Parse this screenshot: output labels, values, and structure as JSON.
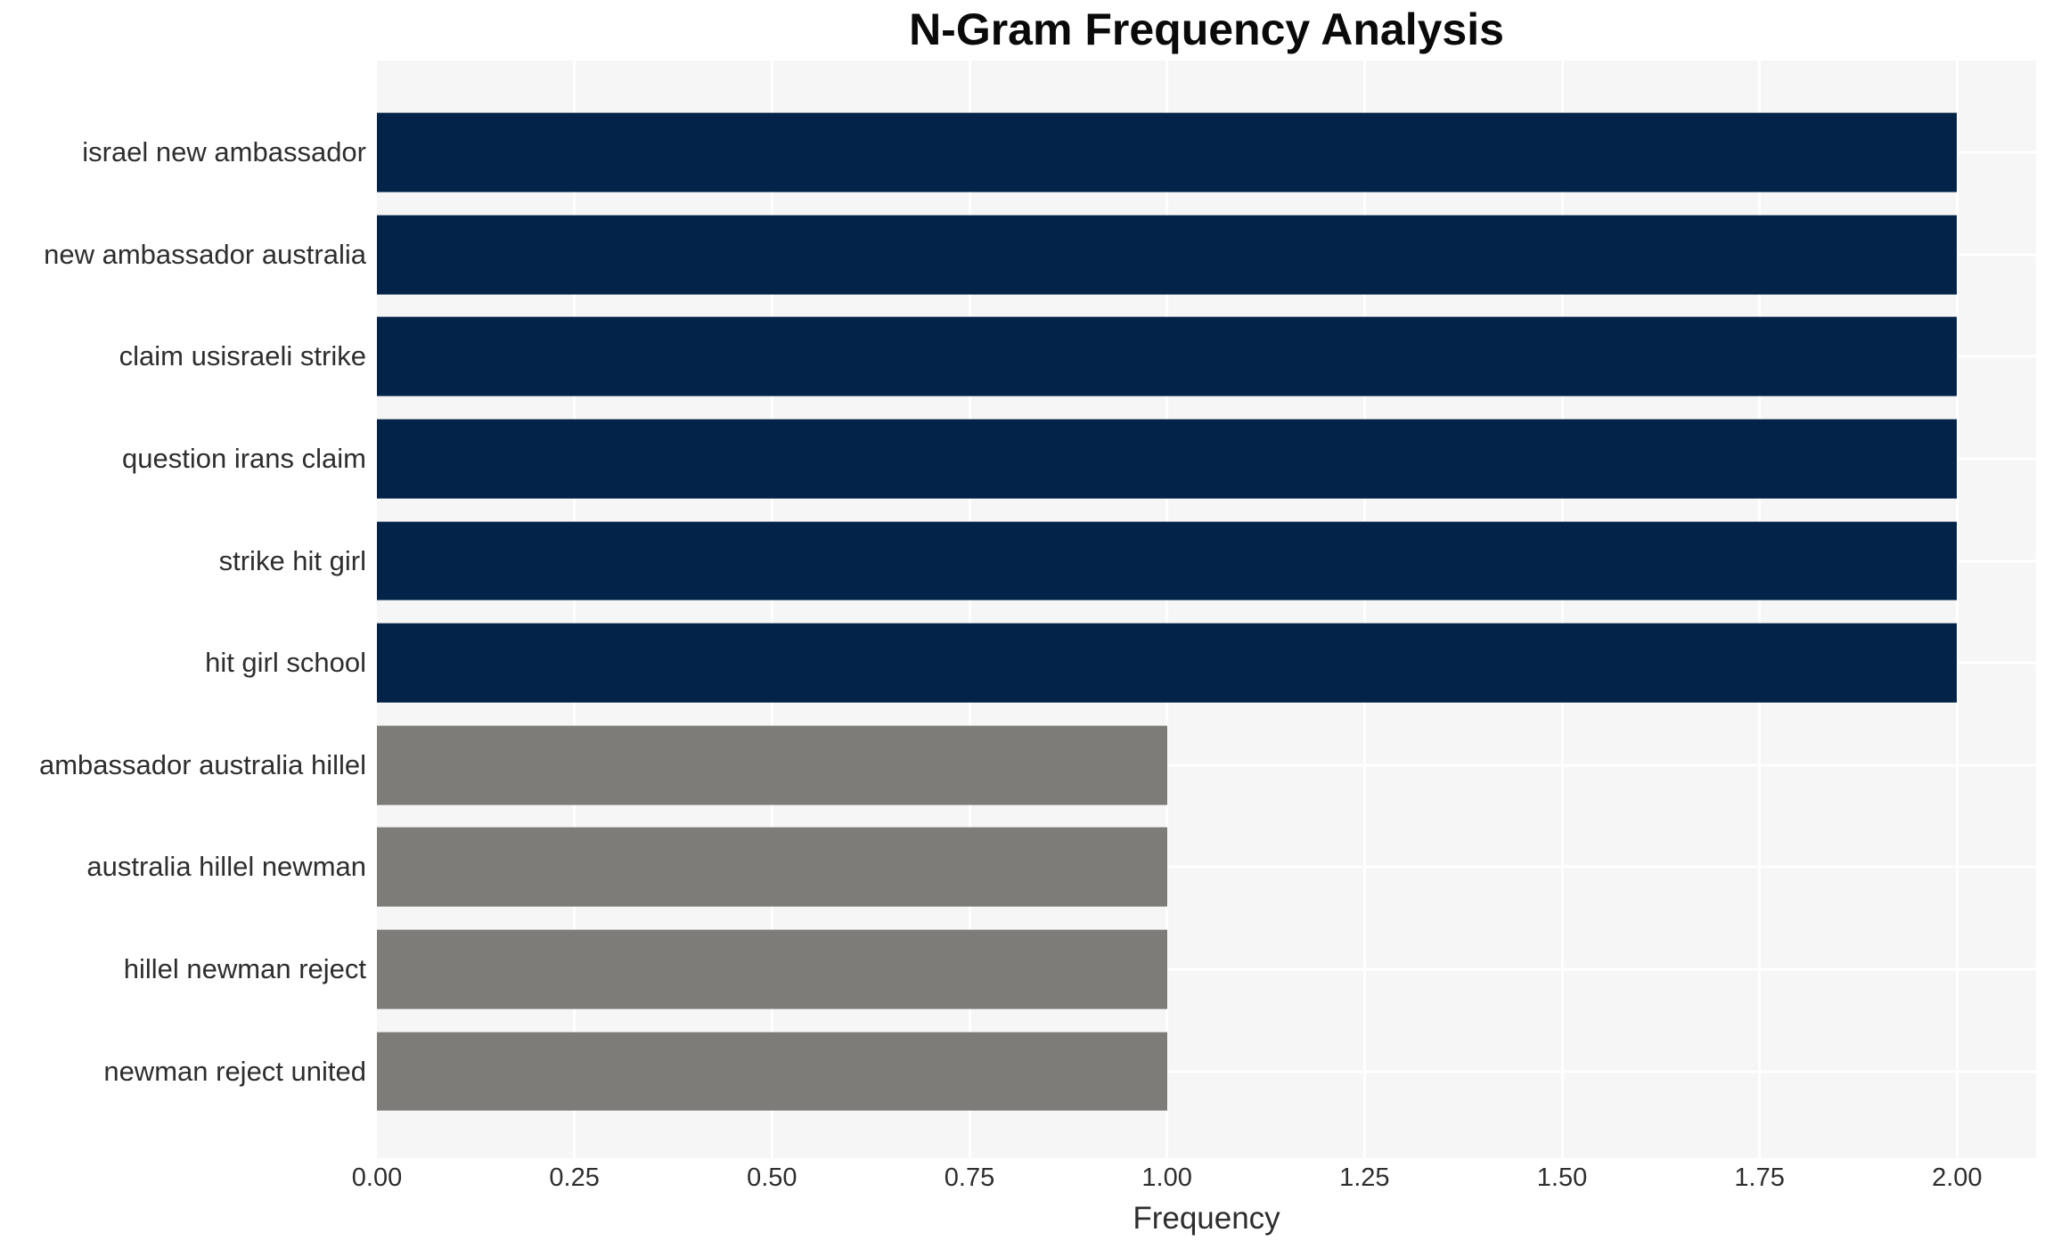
{
  "chart_data": {
    "type": "bar",
    "orientation": "horizontal",
    "title": "N-Gram Frequency Analysis",
    "xlabel": "Frequency",
    "ylabel": "",
    "categories": [
      "israel new ambassador",
      "new ambassador australia",
      "claim usisraeli strike",
      "question irans claim",
      "strike hit girl",
      "hit girl school",
      "ambassador australia hillel",
      "australia hillel newman",
      "hillel newman reject",
      "newman reject united"
    ],
    "values": [
      2,
      2,
      2,
      2,
      2,
      2,
      1,
      1,
      1,
      1
    ],
    "xlim": [
      0,
      2.1
    ],
    "xticks": [
      0,
      0.25,
      0.5,
      0.75,
      1,
      1.25,
      1.5,
      1.75,
      2
    ],
    "xtick_labels": [
      "0.00",
      "0.25",
      "0.50",
      "0.75",
      "1.00",
      "1.25",
      "1.50",
      "1.75",
      "2.00"
    ],
    "grid": true,
    "legend": false,
    "colors": {
      "bar_high": "#032349",
      "bar_low": "#7d7c78",
      "high_threshold": 2,
      "plot_background": "#f6f6f6",
      "gridline": "#ffffff",
      "title_text": "#0a0a0a",
      "axis_text": "#2e2e2e"
    }
  }
}
